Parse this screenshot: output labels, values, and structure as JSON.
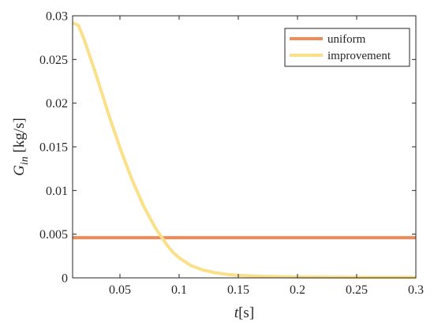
{
  "chart_data": {
    "type": "line",
    "xlabel": "t[s]",
    "ylabel": "G_in [kg/s]",
    "ylabel_parts": {
      "symbol": "G",
      "subscript": "in",
      "unit": "[kg/s]"
    },
    "xlabel_parts": {
      "symbol": "t",
      "unit": "[s]"
    },
    "xlim": [
      0.01,
      0.3
    ],
    "ylim": [
      0,
      0.03
    ],
    "xticks": [
      0.05,
      0.1,
      0.15,
      0.2,
      0.25,
      0.3
    ],
    "xtick_labels": [
      "0.05",
      "0.1",
      "0.15",
      "0.2",
      "0.25",
      "0.3"
    ],
    "yticks": [
      0,
      0.005,
      0.01,
      0.015,
      0.02,
      0.025,
      0.03
    ],
    "ytick_labels": [
      "0",
      "0.005",
      "0.01",
      "0.015",
      "0.02",
      "0.025",
      "0.03"
    ],
    "grid": false,
    "legend_position": "top-right",
    "series": [
      {
        "name": "uniform",
        "color": "#F08A58",
        "x": [
          0.01,
          0.3
        ],
        "y": [
          0.0046,
          0.0046
        ]
      },
      {
        "name": "improvement",
        "color": "#FBE08A",
        "x": [
          0.01,
          0.015,
          0.02,
          0.03,
          0.04,
          0.05,
          0.06,
          0.07,
          0.08,
          0.09,
          0.095,
          0.1,
          0.11,
          0.12,
          0.13,
          0.14,
          0.15,
          0.17,
          0.2,
          0.25,
          0.3
        ],
        "y": [
          0.0292,
          0.0289,
          0.0272,
          0.0232,
          0.0189,
          0.0149,
          0.0113,
          0.0082,
          0.0057,
          0.0037,
          0.0029,
          0.0023,
          0.0014,
          0.0009,
          0.0006,
          0.0004,
          0.00028,
          0.00018,
          0.0001,
          6e-05,
          5e-05
        ]
      }
    ]
  }
}
